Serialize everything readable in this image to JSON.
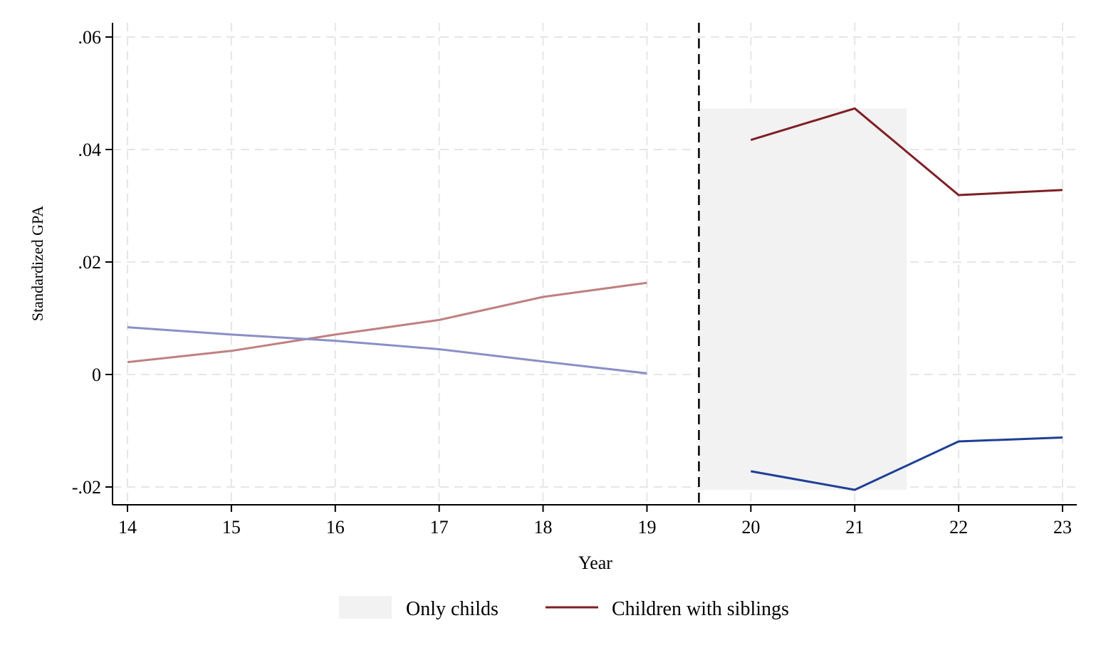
{
  "chart_data": {
    "type": "line",
    "xlabel": "Year",
    "ylabel": "Standardized GPA",
    "xlim": [
      14,
      23
    ],
    "ylim": [
      -0.023,
      0.063
    ],
    "x_ticks": [
      14,
      15,
      16,
      17,
      18,
      19,
      20,
      21,
      22,
      23
    ],
    "x_tick_labels": [
      "14",
      "15",
      "16",
      "17",
      "18",
      "19",
      "20",
      "21",
      "22",
      "23"
    ],
    "y_ticks": [
      -0.02,
      0,
      0.02,
      0.04,
      0.06
    ],
    "y_tick_labels": [
      "-.02",
      "0",
      ".02",
      ".04",
      ".06"
    ],
    "grid": true,
    "vline_x": 19.5,
    "shaded_region": {
      "x": [
        19.5,
        21.5
      ],
      "y": [
        -0.0205,
        0.0473
      ],
      "color": "#f2f2f2"
    },
    "legend_position": "bottom",
    "legend": [
      {
        "label": "Only childs",
        "kind": "area",
        "color": "#f2f2f2"
      },
      {
        "label": "Children with siblings",
        "kind": "line",
        "color": "#7f1f24"
      }
    ],
    "series": [
      {
        "color": "#c08080",
        "x": [
          14,
          15,
          16,
          17,
          18,
          19
        ],
        "values": [
          0.0022,
          0.0042,
          0.0071,
          0.0097,
          0.0138,
          0.0163
        ]
      },
      {
        "color": "#8b8fc6",
        "x": [
          14,
          15,
          16,
          17,
          18,
          19
        ],
        "values": [
          0.0084,
          0.0071,
          0.006,
          0.0045,
          0.0023,
          0.0002
        ]
      },
      {
        "color": "#7f1f24",
        "x": [
          20,
          21,
          22,
          23
        ],
        "values": [
          0.0417,
          0.0473,
          0.0319,
          0.0328
        ]
      },
      {
        "color": "#1f3f96",
        "x": [
          20,
          21,
          22,
          23
        ],
        "values": [
          -0.0172,
          -0.0205,
          -0.0119,
          -0.0112
        ]
      }
    ]
  }
}
